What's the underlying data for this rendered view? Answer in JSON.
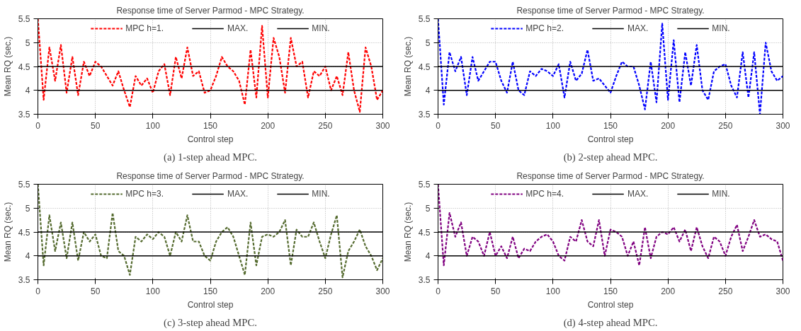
{
  "chart_data": [
    {
      "type": "line",
      "title": "Response time of Server Parmod - MPC Strategy.",
      "xlabel": "Control step",
      "ylabel": "Mean RQ (sec.)",
      "annotations": [
        "(a) 1-step ahead MPC."
      ],
      "xlim": [
        0,
        300
      ],
      "xticks": [
        0,
        50,
        100,
        150,
        200,
        250,
        300
      ],
      "ylim": [
        3.5,
        5.5
      ],
      "yticks": [
        3.5,
        4,
        4.5,
        5,
        5.5
      ],
      "grid": true,
      "legend": "top",
      "x": [
        0,
        5,
        10,
        15,
        20,
        25,
        30,
        35,
        40,
        45,
        50,
        55,
        60,
        65,
        70,
        75,
        80,
        85,
        90,
        95,
        100,
        105,
        110,
        115,
        120,
        125,
        130,
        135,
        140,
        145,
        150,
        155,
        160,
        165,
        170,
        175,
        180,
        185,
        190,
        195,
        200,
        205,
        210,
        215,
        220,
        225,
        230,
        235,
        240,
        245,
        250,
        255,
        260,
        265,
        270,
        275,
        280,
        285,
        290,
        295,
        300
      ],
      "series": [
        {
          "name": "MPC h=1.",
          "color": "#ff0000",
          "line_style": "dashed",
          "values": [
            5.5,
            3.8,
            4.9,
            4.2,
            4.95,
            3.95,
            4.7,
            3.9,
            4.6,
            4.3,
            4.6,
            4.5,
            4.3,
            4.1,
            4.4,
            4.0,
            3.65,
            4.3,
            4.1,
            4.25,
            3.95,
            4.4,
            4.55,
            3.9,
            4.7,
            4.25,
            4.9,
            4.3,
            4.4,
            3.95,
            4.0,
            4.3,
            4.7,
            4.5,
            4.4,
            4.2,
            3.7,
            4.85,
            3.85,
            5.35,
            3.85,
            5.1,
            4.7,
            3.95,
            5.1,
            4.5,
            4.6,
            3.85,
            4.4,
            4.3,
            4.5,
            4.0,
            4.3,
            3.9,
            4.8,
            4.0,
            3.55,
            4.9,
            4.5,
            3.8,
            4.0
          ]
        },
        {
          "name": "MAX.",
          "color": "#000000",
          "line_style": "solid",
          "values": [
            4.5,
            4.5,
            4.5,
            4.5,
            4.5,
            4.5,
            4.5,
            4.5,
            4.5,
            4.5,
            4.5,
            4.5,
            4.5,
            4.5,
            4.5,
            4.5,
            4.5,
            4.5,
            4.5,
            4.5,
            4.5,
            4.5,
            4.5,
            4.5,
            4.5,
            4.5,
            4.5,
            4.5,
            4.5,
            4.5,
            4.5,
            4.5,
            4.5,
            4.5,
            4.5,
            4.5,
            4.5,
            4.5,
            4.5,
            4.5,
            4.5,
            4.5,
            4.5,
            4.5,
            4.5,
            4.5,
            4.5,
            4.5,
            4.5,
            4.5,
            4.5,
            4.5,
            4.5,
            4.5,
            4.5,
            4.5,
            4.5,
            4.5,
            4.5,
            4.5,
            4.5
          ]
        },
        {
          "name": "MIN.",
          "color": "#000000",
          "line_style": "solid",
          "values": [
            4,
            4,
            4,
            4,
            4,
            4,
            4,
            4,
            4,
            4,
            4,
            4,
            4,
            4,
            4,
            4,
            4,
            4,
            4,
            4,
            4,
            4,
            4,
            4,
            4,
            4,
            4,
            4,
            4,
            4,
            4,
            4,
            4,
            4,
            4,
            4,
            4,
            4,
            4,
            4,
            4,
            4,
            4,
            4,
            4,
            4,
            4,
            4,
            4,
            4,
            4,
            4,
            4,
            4,
            4,
            4,
            4,
            4,
            4,
            4,
            4
          ]
        }
      ]
    },
    {
      "type": "line",
      "title": "Response time of Server Parmod - MPC Strategy.",
      "xlabel": "Control step",
      "ylabel": "Mean RQ (sec.)",
      "annotations": [
        "(b) 2-step ahead MPC."
      ],
      "xlim": [
        0,
        300
      ],
      "xticks": [
        0,
        50,
        100,
        150,
        200,
        250,
        300
      ],
      "ylim": [
        3.5,
        5.5
      ],
      "yticks": [
        3.5,
        4,
        4.5,
        5,
        5.5
      ],
      "grid": true,
      "legend": "top",
      "x": [
        0,
        5,
        10,
        15,
        20,
        25,
        30,
        35,
        40,
        45,
        50,
        55,
        60,
        65,
        70,
        75,
        80,
        85,
        90,
        95,
        100,
        105,
        110,
        115,
        120,
        125,
        130,
        135,
        140,
        145,
        150,
        155,
        160,
        165,
        170,
        175,
        180,
        185,
        190,
        195,
        200,
        205,
        210,
        215,
        220,
        225,
        230,
        235,
        240,
        245,
        250,
        255,
        260,
        265,
        270,
        275,
        280,
        285,
        290,
        295,
        300
      ],
      "series": [
        {
          "name": "MPC h=2.",
          "color": "#0000ff",
          "line_style": "dashed",
          "values": [
            5.5,
            3.7,
            4.8,
            4.4,
            4.7,
            3.9,
            4.7,
            4.2,
            4.4,
            4.6,
            4.6,
            4.2,
            3.95,
            4.6,
            4.0,
            3.9,
            4.4,
            4.3,
            4.45,
            4.4,
            4.3,
            4.55,
            3.85,
            4.6,
            4.2,
            4.35,
            4.85,
            4.2,
            4.25,
            4.1,
            3.95,
            4.3,
            4.6,
            4.5,
            4.5,
            4.1,
            3.6,
            4.6,
            3.75,
            5.4,
            3.8,
            5.05,
            3.75,
            4.8,
            4.1,
            4.95,
            4.0,
            3.8,
            4.4,
            4.5,
            4.55,
            4.1,
            3.85,
            4.8,
            3.85,
            4.8,
            3.5,
            5.0,
            4.4,
            4.2,
            4.3
          ]
        },
        {
          "name": "MAX.",
          "color": "#000000",
          "line_style": "solid",
          "values": [
            4.5,
            4.5,
            4.5,
            4.5,
            4.5,
            4.5,
            4.5,
            4.5,
            4.5,
            4.5,
            4.5,
            4.5,
            4.5,
            4.5,
            4.5,
            4.5,
            4.5,
            4.5,
            4.5,
            4.5,
            4.5,
            4.5,
            4.5,
            4.5,
            4.5,
            4.5,
            4.5,
            4.5,
            4.5,
            4.5,
            4.5,
            4.5,
            4.5,
            4.5,
            4.5,
            4.5,
            4.5,
            4.5,
            4.5,
            4.5,
            4.5,
            4.5,
            4.5,
            4.5,
            4.5,
            4.5,
            4.5,
            4.5,
            4.5,
            4.5,
            4.5,
            4.5,
            4.5,
            4.5,
            4.5,
            4.5,
            4.5,
            4.5,
            4.5,
            4.5,
            4.5
          ]
        },
        {
          "name": "MIN.",
          "color": "#000000",
          "line_style": "solid",
          "values": [
            4,
            4,
            4,
            4,
            4,
            4,
            4,
            4,
            4,
            4,
            4,
            4,
            4,
            4,
            4,
            4,
            4,
            4,
            4,
            4,
            4,
            4,
            4,
            4,
            4,
            4,
            4,
            4,
            4,
            4,
            4,
            4,
            4,
            4,
            4,
            4,
            4,
            4,
            4,
            4,
            4,
            4,
            4,
            4,
            4,
            4,
            4,
            4,
            4,
            4,
            4,
            4,
            4,
            4,
            4,
            4,
            4,
            4,
            4,
            4,
            4
          ]
        }
      ]
    },
    {
      "type": "line",
      "title": "Response time of Server Parmod - MPC Strategy.",
      "xlabel": "Control step",
      "ylabel": "Mean RQ (sec.)",
      "annotations": [
        "(c) 3-step ahead MPC."
      ],
      "xlim": [
        0,
        300
      ],
      "xticks": [
        0,
        50,
        100,
        150,
        200,
        250,
        300
      ],
      "ylim": [
        3.5,
        5.5
      ],
      "yticks": [
        3.5,
        4,
        4.5,
        5,
        5.5
      ],
      "grid": true,
      "legend": "top",
      "x": [
        0,
        5,
        10,
        15,
        20,
        25,
        30,
        35,
        40,
        45,
        50,
        55,
        60,
        65,
        70,
        75,
        80,
        85,
        90,
        95,
        100,
        105,
        110,
        115,
        120,
        125,
        130,
        135,
        140,
        145,
        150,
        155,
        160,
        165,
        170,
        175,
        180,
        185,
        190,
        195,
        200,
        205,
        210,
        215,
        220,
        225,
        230,
        235,
        240,
        245,
        250,
        255,
        260,
        265,
        270,
        275,
        280,
        285,
        290,
        295,
        300
      ],
      "series": [
        {
          "name": "MPC h=3.",
          "color": "#556b2f",
          "line_style": "dashed",
          "values": [
            5.5,
            3.8,
            4.85,
            4.1,
            4.7,
            3.95,
            4.7,
            3.9,
            4.5,
            4.3,
            4.45,
            4.0,
            3.95,
            4.9,
            4.1,
            4.0,
            3.6,
            4.4,
            4.3,
            4.45,
            4.35,
            4.5,
            4.4,
            4.0,
            4.5,
            4.3,
            4.85,
            4.3,
            4.3,
            4.0,
            3.9,
            4.3,
            4.5,
            4.6,
            4.4,
            4.0,
            3.6,
            4.7,
            3.8,
            4.4,
            4.45,
            4.4,
            4.5,
            4.75,
            3.8,
            4.55,
            4.4,
            4.4,
            4.7,
            4.3,
            3.95,
            4.45,
            4.85,
            3.55,
            4.1,
            4.3,
            4.55,
            4.2,
            4.0,
            3.7,
            3.95
          ]
        },
        {
          "name": "MAX.",
          "color": "#000000",
          "line_style": "solid",
          "values": [
            4.5,
            4.5,
            4.5,
            4.5,
            4.5,
            4.5,
            4.5,
            4.5,
            4.5,
            4.5,
            4.5,
            4.5,
            4.5,
            4.5,
            4.5,
            4.5,
            4.5,
            4.5,
            4.5,
            4.5,
            4.5,
            4.5,
            4.5,
            4.5,
            4.5,
            4.5,
            4.5,
            4.5,
            4.5,
            4.5,
            4.5,
            4.5,
            4.5,
            4.5,
            4.5,
            4.5,
            4.5,
            4.5,
            4.5,
            4.5,
            4.5,
            4.5,
            4.5,
            4.5,
            4.5,
            4.5,
            4.5,
            4.5,
            4.5,
            4.5,
            4.5,
            4.5,
            4.5,
            4.5,
            4.5,
            4.5,
            4.5,
            4.5,
            4.5,
            4.5,
            4.5
          ]
        },
        {
          "name": "MIN.",
          "color": "#000000",
          "line_style": "solid",
          "values": [
            4,
            4,
            4,
            4,
            4,
            4,
            4,
            4,
            4,
            4,
            4,
            4,
            4,
            4,
            4,
            4,
            4,
            4,
            4,
            4,
            4,
            4,
            4,
            4,
            4,
            4,
            4,
            4,
            4,
            4,
            4,
            4,
            4,
            4,
            4,
            4,
            4,
            4,
            4,
            4,
            4,
            4,
            4,
            4,
            4,
            4,
            4,
            4,
            4,
            4,
            4,
            4,
            4,
            4,
            4,
            4,
            4,
            4,
            4,
            4,
            4
          ]
        }
      ]
    },
    {
      "type": "line",
      "title": "Response time of Server Parmod - MPC Strategy.",
      "xlabel": "Control step",
      "ylabel": "Mean RQ (sec.)",
      "annotations": [
        "(d) 4-step ahead MPC."
      ],
      "xlim": [
        0,
        300
      ],
      "xticks": [
        0,
        50,
        100,
        150,
        200,
        250,
        300
      ],
      "ylim": [
        3.5,
        5.5
      ],
      "yticks": [
        3.5,
        4,
        4.5,
        5,
        5.5
      ],
      "grid": true,
      "legend": "top",
      "x": [
        0,
        5,
        10,
        15,
        20,
        25,
        30,
        35,
        40,
        45,
        50,
        55,
        60,
        65,
        70,
        75,
        80,
        85,
        90,
        95,
        100,
        105,
        110,
        115,
        120,
        125,
        130,
        135,
        140,
        145,
        150,
        155,
        160,
        165,
        170,
        175,
        180,
        185,
        190,
        195,
        200,
        205,
        210,
        215,
        220,
        225,
        230,
        235,
        240,
        245,
        250,
        255,
        260,
        265,
        270,
        275,
        280,
        285,
        290,
        295,
        300
      ],
      "series": [
        {
          "name": "MPC h=4.",
          "color": "#800080",
          "line_style": "dashed",
          "values": [
            5.5,
            3.8,
            4.9,
            4.4,
            4.7,
            4.0,
            4.4,
            4.3,
            4.0,
            4.5,
            4.0,
            4.2,
            3.95,
            4.4,
            3.95,
            4.15,
            4.1,
            4.3,
            4.4,
            4.45,
            4.3,
            4.0,
            3.9,
            4.4,
            4.3,
            4.75,
            4.3,
            4.2,
            4.75,
            4.0,
            4.55,
            4.5,
            4.4,
            4.0,
            4.3,
            3.8,
            4.6,
            3.95,
            4.4,
            4.5,
            4.45,
            4.6,
            4.3,
            4.55,
            4.1,
            4.6,
            4.2,
            3.95,
            4.4,
            4.3,
            4.0,
            4.4,
            4.65,
            4.1,
            4.4,
            4.75,
            4.4,
            4.45,
            4.35,
            4.3,
            3.9
          ]
        },
        {
          "name": "MAX.",
          "color": "#000000",
          "line_style": "solid",
          "values": [
            4.5,
            4.5,
            4.5,
            4.5,
            4.5,
            4.5,
            4.5,
            4.5,
            4.5,
            4.5,
            4.5,
            4.5,
            4.5,
            4.5,
            4.5,
            4.5,
            4.5,
            4.5,
            4.5,
            4.5,
            4.5,
            4.5,
            4.5,
            4.5,
            4.5,
            4.5,
            4.5,
            4.5,
            4.5,
            4.5,
            4.5,
            4.5,
            4.5,
            4.5,
            4.5,
            4.5,
            4.5,
            4.5,
            4.5,
            4.5,
            4.5,
            4.5,
            4.5,
            4.5,
            4.5,
            4.5,
            4.5,
            4.5,
            4.5,
            4.5,
            4.5,
            4.5,
            4.5,
            4.5,
            4.5,
            4.5,
            4.5,
            4.5,
            4.5,
            4.5,
            4.5
          ]
        },
        {
          "name": "MIN.",
          "color": "#000000",
          "line_style": "solid",
          "values": [
            4,
            4,
            4,
            4,
            4,
            4,
            4,
            4,
            4,
            4,
            4,
            4,
            4,
            4,
            4,
            4,
            4,
            4,
            4,
            4,
            4,
            4,
            4,
            4,
            4,
            4,
            4,
            4,
            4,
            4,
            4,
            4,
            4,
            4,
            4,
            4,
            4,
            4,
            4,
            4,
            4,
            4,
            4,
            4,
            4,
            4,
            4,
            4,
            4,
            4,
            4,
            4,
            4,
            4,
            4,
            4,
            4,
            4,
            4,
            4,
            4
          ]
        }
      ]
    }
  ]
}
